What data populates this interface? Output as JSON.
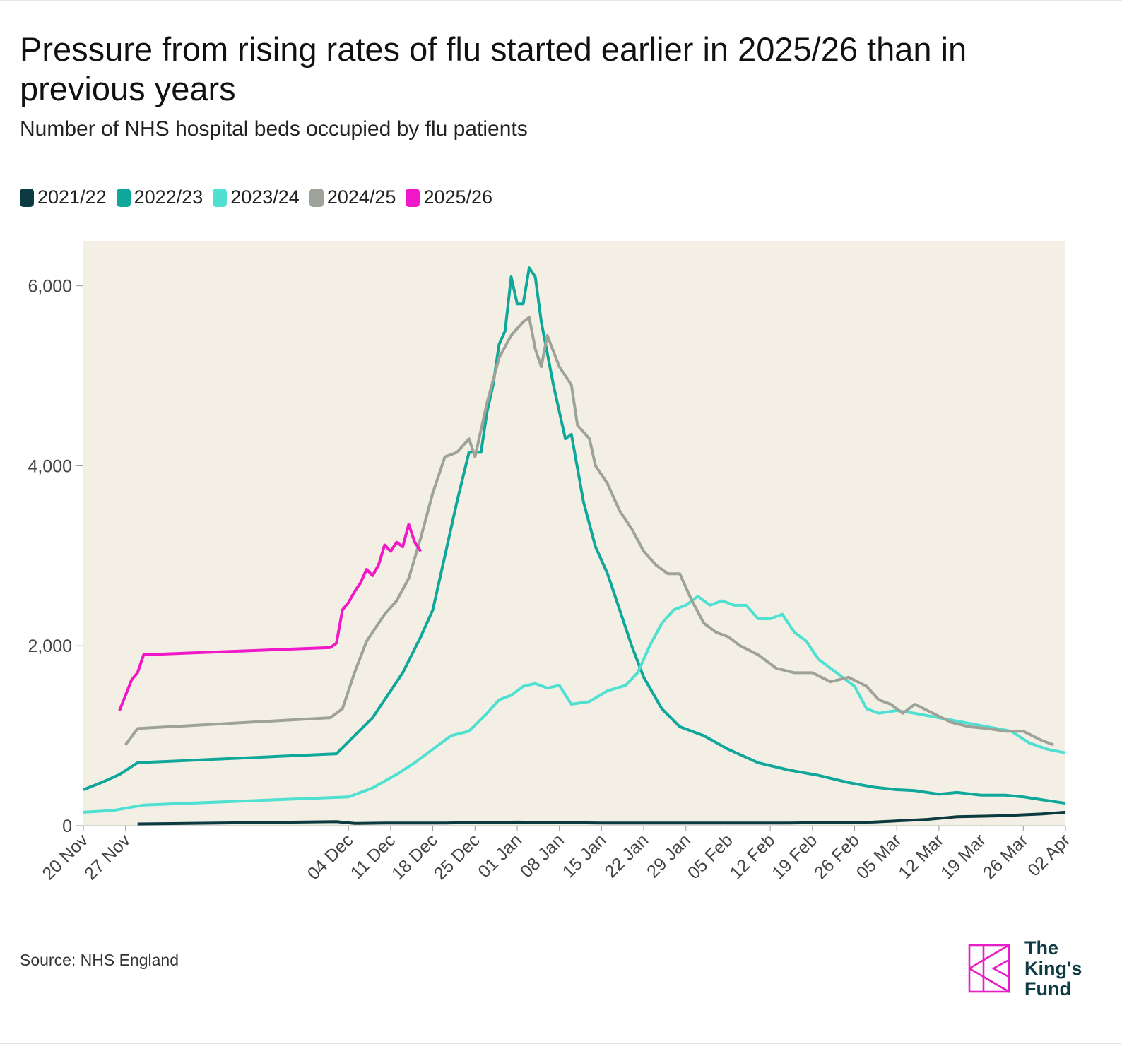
{
  "title": "Pressure from rising rates of flu started earlier in 2025/26 than in previous years",
  "subtitle": "Number of NHS hospital beds occupied by flu patients",
  "source": "Source: NHS England",
  "logo": {
    "line1": "The",
    "line2": "King's",
    "line3": "Fund",
    "icon": "kings-fund-k-logo"
  },
  "colors": {
    "plot_bg": "#f4efe5",
    "logo_pink": "#e61ec8",
    "logo_text": "#0e3b43"
  },
  "chart_data": {
    "type": "line",
    "xlabel": "",
    "ylabel": "",
    "x_start": "20 Nov",
    "x_end": "02 Apr",
    "ylim": [
      0,
      6500
    ],
    "yticks": [
      0,
      2000,
      4000,
      6000
    ],
    "ytick_labels": [
      "0",
      "2,000",
      "4,000",
      "6,000"
    ],
    "xticks": [
      "20 Nov",
      "27 Nov",
      "04 Dec",
      "11 Dec",
      "18 Dec",
      "25 Dec",
      "01 Jan",
      "08 Jan",
      "15 Jan",
      "22 Jan",
      "29 Jan",
      "05 Feb",
      "12 Feb",
      "19 Feb",
      "26 Feb",
      "05 Mar",
      "12 Mar",
      "19 Mar",
      "26 Mar",
      "02 Apr"
    ],
    "grid": false,
    "legend_position": "top-left",
    "series": [
      {
        "name": "2021/22",
        "color": "#0b3a40",
        "points": [
          [
            "29 Nov",
            20
          ],
          [
            "02 Dec",
            45
          ],
          [
            "05 Dec",
            25
          ],
          [
            "10 Dec",
            30
          ],
          [
            "20 Dec",
            30
          ],
          [
            "01 Jan",
            40
          ],
          [
            "15 Jan",
            30
          ],
          [
            "01 Feb",
            30
          ],
          [
            "15 Feb",
            30
          ],
          [
            "01 Mar",
            40
          ],
          [
            "10 Mar",
            70
          ],
          [
            "15 Mar",
            100
          ],
          [
            "22 Mar",
            110
          ],
          [
            "29 Mar",
            130
          ],
          [
            "02 Apr",
            150
          ]
        ]
      },
      {
        "name": "2022/23",
        "color": "#0ea79a",
        "points": [
          [
            "20 Nov",
            400
          ],
          [
            "23 Nov",
            480
          ],
          [
            "26 Nov",
            570
          ],
          [
            "29 Nov",
            700
          ],
          [
            "02 Dec",
            800
          ],
          [
            "05 Dec",
            1000
          ],
          [
            "08 Dec",
            1200
          ],
          [
            "10 Dec",
            1400
          ],
          [
            "13 Dec",
            1700
          ],
          [
            "16 Dec",
            2100
          ],
          [
            "18 Dec",
            2400
          ],
          [
            "20 Dec",
            3000
          ],
          [
            "22 Dec",
            3600
          ],
          [
            "24 Dec",
            4150
          ],
          [
            "26 Dec",
            4150
          ],
          [
            "27 Dec",
            4600
          ],
          [
            "28 Dec",
            4900
          ],
          [
            "29 Dec",
            5350
          ],
          [
            "30 Dec",
            5500
          ],
          [
            "31 Dec",
            6100
          ],
          [
            "01 Jan",
            5800
          ],
          [
            "02 Jan",
            5800
          ],
          [
            "03 Jan",
            6200
          ],
          [
            "04 Jan",
            6100
          ],
          [
            "05 Jan",
            5600
          ],
          [
            "07 Jan",
            4900
          ],
          [
            "09 Jan",
            4300
          ],
          [
            "10 Jan",
            4350
          ],
          [
            "12 Jan",
            3600
          ],
          [
            "14 Jan",
            3100
          ],
          [
            "16 Jan",
            2800
          ],
          [
            "18 Jan",
            2400
          ],
          [
            "20 Jan",
            2000
          ],
          [
            "22 Jan",
            1650
          ],
          [
            "25 Jan",
            1300
          ],
          [
            "28 Jan",
            1100
          ],
          [
            "01 Feb",
            1000
          ],
          [
            "05 Feb",
            850
          ],
          [
            "10 Feb",
            700
          ],
          [
            "15 Feb",
            620
          ],
          [
            "20 Feb",
            560
          ],
          [
            "25 Feb",
            480
          ],
          [
            "01 Mar",
            430
          ],
          [
            "05 Mar",
            400
          ],
          [
            "08 Mar",
            390
          ],
          [
            "12 Mar",
            350
          ],
          [
            "15 Mar",
            370
          ],
          [
            "19 Mar",
            340
          ],
          [
            "23 Mar",
            340
          ],
          [
            "26 Mar",
            320
          ],
          [
            "29 Mar",
            290
          ],
          [
            "02 Apr",
            250
          ]
        ]
      },
      {
        "name": "2023/24",
        "color": "#50e0d2",
        "points": [
          [
            "20 Nov",
            150
          ],
          [
            "25 Nov",
            170
          ],
          [
            "30 Nov",
            230
          ],
          [
            "04 Dec",
            320
          ],
          [
            "08 Dec",
            420
          ],
          [
            "12 Dec",
            570
          ],
          [
            "15 Dec",
            700
          ],
          [
            "18 Dec",
            850
          ],
          [
            "21 Dec",
            1000
          ],
          [
            "24 Dec",
            1050
          ],
          [
            "27 Dec",
            1250
          ],
          [
            "29 Dec",
            1400
          ],
          [
            "31 Dec",
            1450
          ],
          [
            "02 Jan",
            1550
          ],
          [
            "04 Jan",
            1580
          ],
          [
            "06 Jan",
            1530
          ],
          [
            "08 Jan",
            1560
          ],
          [
            "10 Jan",
            1350
          ],
          [
            "13 Jan",
            1380
          ],
          [
            "16 Jan",
            1500
          ],
          [
            "19 Jan",
            1560
          ],
          [
            "21 Jan",
            1700
          ],
          [
            "23 Jan",
            2000
          ],
          [
            "25 Jan",
            2250
          ],
          [
            "27 Jan",
            2400
          ],
          [
            "29 Jan",
            2450
          ],
          [
            "31 Jan",
            2550
          ],
          [
            "02 Feb",
            2450
          ],
          [
            "04 Feb",
            2500
          ],
          [
            "06 Feb",
            2450
          ],
          [
            "08 Feb",
            2450
          ],
          [
            "10 Feb",
            2300
          ],
          [
            "12 Feb",
            2300
          ],
          [
            "14 Feb",
            2350
          ],
          [
            "16 Feb",
            2150
          ],
          [
            "18 Feb",
            2050
          ],
          [
            "20 Feb",
            1850
          ],
          [
            "23 Feb",
            1700
          ],
          [
            "26 Feb",
            1550
          ],
          [
            "28 Feb",
            1300
          ],
          [
            "02 Mar",
            1250
          ],
          [
            "05 Mar",
            1280
          ],
          [
            "08 Mar",
            1250
          ],
          [
            "12 Mar",
            1200
          ],
          [
            "16 Mar",
            1150
          ],
          [
            "20 Mar",
            1100
          ],
          [
            "24 Mar",
            1050
          ],
          [
            "27 Mar",
            920
          ],
          [
            "30 Mar",
            850
          ],
          [
            "02 Apr",
            810
          ]
        ]
      },
      {
        "name": "2024/25",
        "color": "#9ea39a",
        "points": [
          [
            "27 Nov",
            900
          ],
          [
            "29 Nov",
            1080
          ],
          [
            "01 Dec",
            1200
          ],
          [
            "03 Dec",
            1300
          ],
          [
            "05 Dec",
            1700
          ],
          [
            "07 Dec",
            2050
          ],
          [
            "10 Dec",
            2350
          ],
          [
            "12 Dec",
            2500
          ],
          [
            "14 Dec",
            2750
          ],
          [
            "16 Dec",
            3200
          ],
          [
            "18 Dec",
            3700
          ],
          [
            "20 Dec",
            4100
          ],
          [
            "22 Dec",
            4150
          ],
          [
            "24 Dec",
            4300
          ],
          [
            "25 Dec",
            4100
          ],
          [
            "27 Dec",
            4700
          ],
          [
            "29 Dec",
            5200
          ],
          [
            "31 Dec",
            5450
          ],
          [
            "02 Jan",
            5600
          ],
          [
            "03 Jan",
            5650
          ],
          [
            "04 Jan",
            5300
          ],
          [
            "05 Jan",
            5100
          ],
          [
            "06 Jan",
            5450
          ],
          [
            "08 Jan",
            5100
          ],
          [
            "10 Jan",
            4900
          ],
          [
            "11 Jan",
            4450
          ],
          [
            "13 Jan",
            4300
          ],
          [
            "14 Jan",
            4000
          ],
          [
            "16 Jan",
            3800
          ],
          [
            "18 Jan",
            3500
          ],
          [
            "20 Jan",
            3300
          ],
          [
            "22 Jan",
            3050
          ],
          [
            "24 Jan",
            2900
          ],
          [
            "26 Jan",
            2800
          ],
          [
            "28 Jan",
            2800
          ],
          [
            "30 Jan",
            2500
          ],
          [
            "01 Feb",
            2250
          ],
          [
            "03 Feb",
            2150
          ],
          [
            "05 Feb",
            2100
          ],
          [
            "07 Feb",
            2000
          ],
          [
            "10 Feb",
            1900
          ],
          [
            "13 Feb",
            1750
          ],
          [
            "16 Feb",
            1700
          ],
          [
            "19 Feb",
            1700
          ],
          [
            "22 Feb",
            1600
          ],
          [
            "25 Feb",
            1650
          ],
          [
            "28 Feb",
            1550
          ],
          [
            "02 Mar",
            1400
          ],
          [
            "04 Mar",
            1350
          ],
          [
            "06 Mar",
            1250
          ],
          [
            "08 Mar",
            1350
          ],
          [
            "11 Mar",
            1250
          ],
          [
            "14 Mar",
            1150
          ],
          [
            "17 Mar",
            1100
          ],
          [
            "20 Mar",
            1080
          ],
          [
            "23 Mar",
            1050
          ],
          [
            "26 Mar",
            1050
          ],
          [
            "29 Mar",
            950
          ],
          [
            "31 Mar",
            900
          ]
        ]
      },
      {
        "name": "2025/26",
        "color": "#f018c8",
        "points": [
          [
            "26 Nov",
            1280
          ],
          [
            "27 Nov",
            1450
          ],
          [
            "28 Nov",
            1620
          ],
          [
            "29 Nov",
            1700
          ],
          [
            "30 Nov",
            1900
          ],
          [
            "01 Dec",
            1980
          ],
          [
            "02 Dec",
            2030
          ],
          [
            "03 Dec",
            2400
          ],
          [
            "04 Dec",
            2480
          ],
          [
            "05 Dec",
            2600
          ],
          [
            "06 Dec",
            2700
          ],
          [
            "07 Dec",
            2850
          ],
          [
            "08 Dec",
            2780
          ],
          [
            "09 Dec",
            2900
          ],
          [
            "10 Dec",
            3120
          ],
          [
            "11 Dec",
            3050
          ],
          [
            "12 Dec",
            3150
          ],
          [
            "13 Dec",
            3100
          ],
          [
            "14 Dec",
            3350
          ],
          [
            "15 Dec",
            3150
          ],
          [
            "16 Dec",
            3050
          ]
        ]
      }
    ]
  }
}
